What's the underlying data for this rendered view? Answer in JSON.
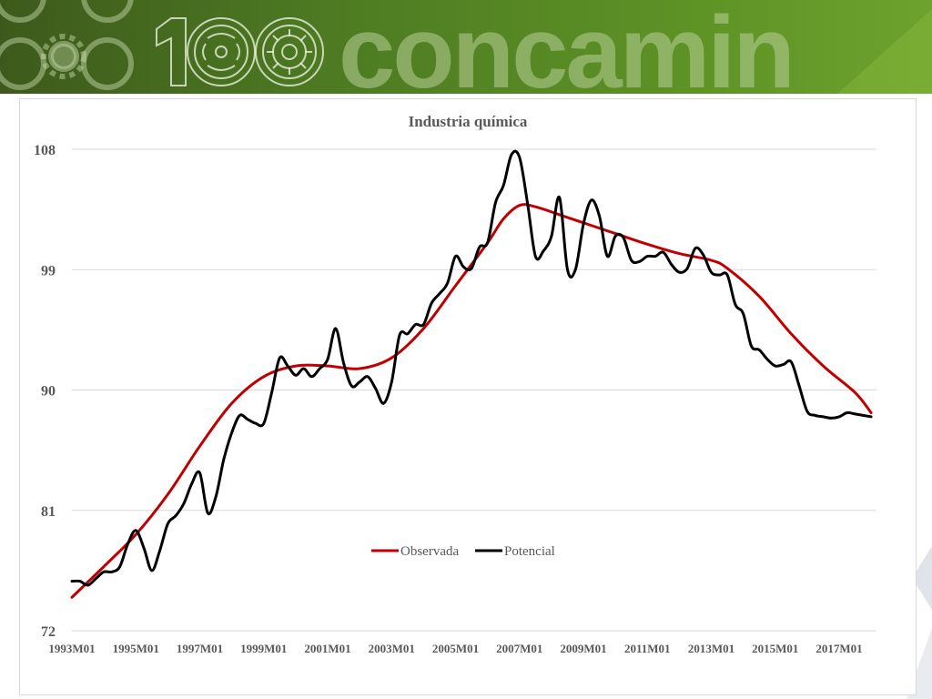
{
  "banner": {
    "logo_number": "100",
    "logo_text": "concamin",
    "colors": {
      "dark": "#3d5a1c",
      "light": "#6ea22e",
      "emblem": "#cfe0b4"
    }
  },
  "chart_data": {
    "type": "line",
    "title": "Industria química",
    "xlabel": "",
    "ylabel": "",
    "ylim": [
      72,
      108
    ],
    "y_ticks": [
      72,
      81,
      90,
      99,
      108
    ],
    "x_range": [
      "1993M01",
      "2018M03"
    ],
    "x_ticks": [
      "1993M01",
      "1995M01",
      "1997M01",
      "1999M01",
      "2001M01",
      "2003M01",
      "2005M01",
      "2007M01",
      "2009M01",
      "2011M01",
      "2013M01",
      "2015M01",
      "2017M01"
    ],
    "grid": "horizontal",
    "legend_position": "inside-bottom-center",
    "series": [
      {
        "name": "Observada",
        "color": "#c00000",
        "points": [
          [
            "1993M01",
            74.5
          ],
          [
            "1994M01",
            76.8
          ],
          [
            "1995M01",
            79.2
          ],
          [
            "1996M01",
            82.2
          ],
          [
            "1997M01",
            85.8
          ],
          [
            "1998M01",
            89.0
          ],
          [
            "1999M01",
            91.0
          ],
          [
            "2000M01",
            91.8
          ],
          [
            "2001M01",
            91.8
          ],
          [
            "2002M01",
            91.6
          ],
          [
            "2003M01",
            92.4
          ],
          [
            "2004M01",
            94.6
          ],
          [
            "2005M01",
            97.8
          ],
          [
            "2006M01",
            101.0
          ],
          [
            "2006M07",
            102.8
          ],
          [
            "2007M01",
            103.8
          ],
          [
            "2007M07",
            103.7
          ],
          [
            "2008M07",
            102.9
          ],
          [
            "2010M01",
            101.7
          ],
          [
            "2011M01",
            100.9
          ],
          [
            "2012M01",
            100.2
          ],
          [
            "2013M01",
            99.7
          ],
          [
            "2013M07",
            99.1
          ],
          [
            "2014M07",
            97.0
          ],
          [
            "2015M07",
            94.2
          ],
          [
            "2016M07",
            91.8
          ],
          [
            "2017M07",
            89.8
          ],
          [
            "2018M01",
            88.3
          ]
        ]
      },
      {
        "name": "Potencial",
        "color": "#000000",
        "points": [
          [
            "1993M01",
            75.7
          ],
          [
            "1993M04",
            75.7
          ],
          [
            "1993M07",
            75.4
          ],
          [
            "1993M10",
            75.9
          ],
          [
            "1994M01",
            76.4
          ],
          [
            "1994M04",
            76.4
          ],
          [
            "1994M07",
            76.8
          ],
          [
            "1994M10",
            78.5
          ],
          [
            "1995M01",
            79.5
          ],
          [
            "1995M04",
            78.2
          ],
          [
            "1995M07",
            76.5
          ],
          [
            "1995M10",
            78.0
          ],
          [
            "1996M01",
            80.0
          ],
          [
            "1996M04",
            80.6
          ],
          [
            "1996M07",
            81.5
          ],
          [
            "1996M10",
            83.0
          ],
          [
            "1997M01",
            83.8
          ],
          [
            "1997M04",
            80.8
          ],
          [
            "1997M07",
            82.0
          ],
          [
            "1997M10",
            84.8
          ],
          [
            "1998M01",
            86.8
          ],
          [
            "1998M04",
            88.1
          ],
          [
            "1998M07",
            87.8
          ],
          [
            "1998M10",
            87.5
          ],
          [
            "1999M01",
            87.5
          ],
          [
            "1999M04",
            89.8
          ],
          [
            "1999M07",
            92.4
          ],
          [
            "1999M10",
            91.8
          ],
          [
            "2000M01",
            91.1
          ],
          [
            "2000M04",
            91.6
          ],
          [
            "2000M07",
            91.0
          ],
          [
            "2000M10",
            91.6
          ],
          [
            "2001M01",
            92.3
          ],
          [
            "2001M04",
            94.6
          ],
          [
            "2001M07",
            92.0
          ],
          [
            "2001M10",
            90.3
          ],
          [
            "2002M01",
            90.6
          ],
          [
            "2002M04",
            91.0
          ],
          [
            "2002M07",
            90.1
          ],
          [
            "2002M10",
            89.0
          ],
          [
            "2003M01",
            90.6
          ],
          [
            "2003M04",
            94.1
          ],
          [
            "2003M07",
            94.2
          ],
          [
            "2003M10",
            94.9
          ],
          [
            "2004M01",
            94.9
          ],
          [
            "2004M04",
            96.5
          ],
          [
            "2004M07",
            97.2
          ],
          [
            "2004M10",
            98.0
          ],
          [
            "2005M01",
            100.0
          ],
          [
            "2005M04",
            99.2
          ],
          [
            "2005M07",
            99.1
          ],
          [
            "2005M10",
            100.7
          ],
          [
            "2006M01",
            101.0
          ],
          [
            "2006M04",
            104.0
          ],
          [
            "2006M07",
            105.3
          ],
          [
            "2006M10",
            107.6
          ],
          [
            "2007M01",
            107.4
          ],
          [
            "2007M04",
            104.0
          ],
          [
            "2007M07",
            100.0
          ],
          [
            "2007M10",
            100.4
          ],
          [
            "2008M01",
            101.5
          ],
          [
            "2008M04",
            104.4
          ],
          [
            "2008M07",
            99.0
          ],
          [
            "2008M10",
            99.0
          ],
          [
            "2009M01",
            102.4
          ],
          [
            "2009M04",
            104.2
          ],
          [
            "2009M07",
            103.0
          ],
          [
            "2009M10",
            100.0
          ],
          [
            "2010M01",
            101.5
          ],
          [
            "2010M04",
            101.4
          ],
          [
            "2010M07",
            99.7
          ],
          [
            "2010M10",
            99.6
          ],
          [
            "2011M01",
            100.0
          ],
          [
            "2011M04",
            100.0
          ],
          [
            "2011M07",
            100.3
          ],
          [
            "2011M10",
            99.4
          ],
          [
            "2012M01",
            98.8
          ],
          [
            "2012M04",
            99.1
          ],
          [
            "2012M07",
            100.6
          ],
          [
            "2012M10",
            100.1
          ],
          [
            "2013M01",
            98.8
          ],
          [
            "2013M04",
            98.6
          ],
          [
            "2013M07",
            98.6
          ],
          [
            "2013M10",
            96.4
          ],
          [
            "2014M01",
            95.7
          ],
          [
            "2014M04",
            93.3
          ],
          [
            "2014M07",
            93.0
          ],
          [
            "2014M10",
            92.3
          ],
          [
            "2015M01",
            91.8
          ],
          [
            "2015M04",
            91.9
          ],
          [
            "2015M07",
            92.1
          ],
          [
            "2015M10",
            90.3
          ],
          [
            "2016M01",
            88.4
          ],
          [
            "2016M04",
            88.1
          ],
          [
            "2016M07",
            88.0
          ],
          [
            "2016M10",
            87.9
          ],
          [
            "2017M01",
            88.0
          ],
          [
            "2017M04",
            88.3
          ],
          [
            "2017M07",
            88.2
          ],
          [
            "2017M10",
            88.1
          ],
          [
            "2018M01",
            88.0
          ]
        ]
      }
    ]
  }
}
